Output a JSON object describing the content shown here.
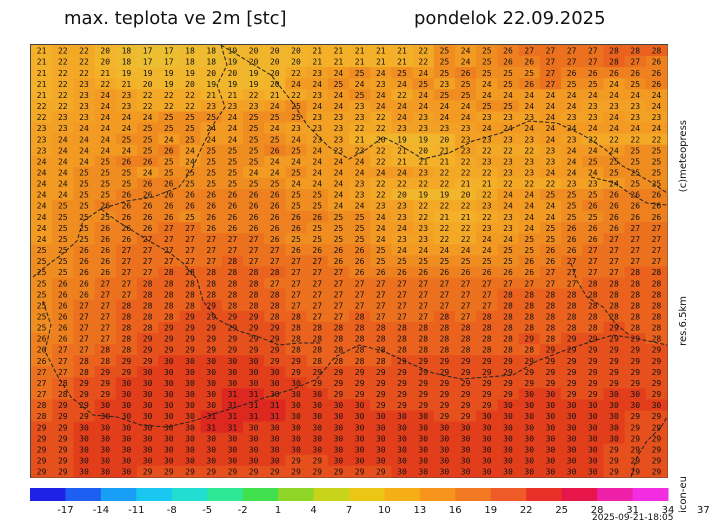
{
  "header": {
    "title": "max. teplota ve 2m [stc]",
    "date": "pondelok 22.09.2025"
  },
  "side_labels": {
    "copyright": "(c)meteopress",
    "resolution": "res.6.5km",
    "model": "icon-eu"
  },
  "timestamp": "2025-09-21-18:05",
  "legend": {
    "ticks": [
      "-17",
      "-14",
      "-11",
      "-8",
      "-5",
      "-2",
      "1",
      "4",
      "7",
      "10",
      "13",
      "16",
      "19",
      "22",
      "25",
      "28",
      "31",
      "34",
      "37"
    ],
    "colors": [
      "#1e22e6",
      "#1d5ff0",
      "#189ff5",
      "#19c7f0",
      "#22ded2",
      "#2ee896",
      "#40e04e",
      "#8fd628",
      "#c8d41a",
      "#ecc614",
      "#f6ae16",
      "#f6941c",
      "#f27822",
      "#ee5a28",
      "#e83028",
      "#e6164a",
      "#ee20a8",
      "#f22ce0"
    ]
  },
  "grid": {
    "columns": 30,
    "rows": [
      "21 22 22 20 18 17 17 18 18 19 20 20 20 21 21 21 21 21 22 25 24 25 26 27 27 27 27 28 28 28",
      "21 22 22 20 18 17 17 18 18 19 20 20 20 21 21 21 21 21 22 25 24 25 26 26 27 27 27 28 27 26",
      "21 22 22 21 19 19 19 19 20 20 19 20 22 23 24 25 24 25 24 25 26 25 25 25 27 26 26 26 26 26",
      "21 22 23 22 21 20 19 20 19 19 19 20 24 24 25 24 23 24 25 23 25 24 25 26 27 25 25 24 25 26",
      "21 22 23 24 23 22 22 22 21 21 22 21 22 23 24 25 24 22 24 25 25 24 24 24 24 24 24 24 24 24",
      "22 22 23 24 23 22 22 22 23 23 23 24 25 24 24 23 24 24 24 24 24 25 25 24 24 24 23 23 23 24",
      "22 23 23 24 24 24 25 25 25 24 25 25 25 23 23 23 22 24 23 24 24 23 23 23 24 23 23 24 23 23",
      "23 23 24 24 24 25 25 25 24 24 25 24 23 23 23 22 22 23 23 23 23 24 24 24 24 24 24 24 24 24",
      "23 24 24 24 25 25 24 25 24 24 25 25 24 23 23 21 20 19 19 20 23 23 23 23 24 23 22 22 22 22",
      "23 24 24 24 24 25 26 24 25 25 25 26 25 24 23 23 22 21 20 21 23 22 22 22 23 24 24 24 25 25",
      "24 24 24 25 26 26 25 24 25 25 25 24 24 24 24 24 22 21 21 21 22 23 23 23 23 24 25 25 25 25",
      "24 24 25 25 25 24 25 25 25 25 24 24 25 24 24 24 24 24 23 22 22 22 23 23 24 24 24 25 25 25",
      "24 24 25 25 25 26 26 25 25 25 25 25 24 24 24 23 22 22 22 22 21 21 22 22 22 23 23 24 25 25",
      "24 24 25 25 26 26 26 26 26 26 26 26 25 25 24 23 22 20 19 19 20 22 24 24 25 25 25 26 26 26",
      "24 25 25 26 26 26 26 26 26 26 26 26 25 25 24 24 23 23 22 22 22 23 24 24 24 25 26 26 26 26",
      "24 25 25 25 26 26 26 25 26 26 26 26 26 26 25 25 24 23 22 21 21 22 23 24 24 25 25 26 26 26",
      "24 25 25 26 26 26 27 27 26 26 26 26 26 25 25 25 24 24 23 22 22 23 23 24 25 26 26 26 27 27",
      "24 25 25 26 26 27 27 27 27 27 27 26 25 25 25 25 24 23 23 22 22 24 24 25 25 26 26 27 27 27",
      "25 25 26 26 27 27 27 27 27 27 27 27 26 26 26 26 25 24 24 24 24 24 25 25 26 26 27 27 27 27",
      "25 25 26 26 27 27 27 27 27 28 27 27 27 27 26 26 25 25 25 25 25 25 25 26 26 27 27 27 27 27",
      "25 25 26 26 27 27 28 28 28 28 28 28 27 27 27 26 26 26 26 26 26 26 26 26 27 27 27 27 28 28",
      "25 26 26 27 27 28 28 28 28 28 28 27 27 27 27 27 27 27 27 27 27 27 27 27 27 27 28 28 28 28",
      "25 26 26 27 27 28 28 28 28 28 28 28 27 27 27 27 27 27 27 27 27 27 28 28 28 28 28 28 28 28",
      "25 26 27 27 28 28 28 28 29 28 28 28 27 27 27 27 27 27 27 27 27 27 28 28 28 28 28 28 28 28",
      "25 26 27 27 28 28 28 29 29 29 29 28 28 27 27 28 27 27 27 28 27 28 28 28 28 28 28 28 28 28",
      "25 26 27 27 28 28 29 29 29 29 29 29 28 28 28 28 28 28 28 28 28 28 28 28 28 28 28 29 28 28",
      "26 26 27 27 28 29 29 29 29 29 29 29 28 28 28 28 28 28 28 28 28 28 28 29 28 29 29 29 29 28",
      "26 27 27 28 28 29 29 29 29 29 29 29 28 28 28 28 28 28 28 28 28 28 28 28 29 29 29 29 29 29",
      "26 27 28 28 29 29 30 30 30 30 30 29 29 28 28 28 28 29 29 29 29 29 29 29 29 29 29 29 29 29",
      "27 27 28 29 29 30 30 30 30 30 30 30 29 29 29 29 29 29 29 29 29 29 29 29 29 29 29 29 29 29",
      "27 28 29 29 30 30 30 30 30 30 30 30 30 29 29 29 29 29 29 29 29 29 29 29 29 29 29 29 29 29",
      "27 28 29 29 30 30 30 30 30 31 31 30 30 30 29 29 29 29 29 29 29 29 29 30 30 29 29 30 30 29",
      "28 29 29 30 30 30 30 30 30 31 31 31 30 30 30 30 29 29 29 29 29 29 30 30 30 30 30 30 30 30",
      "28 29 29 30 30 30 30 30 31 31 31 31 30 30 30 30 30 30 30 29 29 30 30 30 30 30 30 30 29 29",
      "29 29 30 30 30 30 30 30 31 31 30 30 30 30 30 30 30 30 30 30 30 30 30 30 30 30 30 30 29 29",
      "29 29 30 30 30 30 30 30 30 30 30 30 30 30 30 30 30 30 30 30 30 30 30 30 30 30 30 30 29 29",
      "29 29 30 30 30 30 30 30 30 30 30 30 30 30 30 30 30 30 30 30 30 30 30 30 30 30 30 29 29 29",
      "29 29 30 30 30 30 30 30 30 30 30 30 29 29 30 30 30 30 30 30 30 30 30 30 30 30 30 29 29 29",
      "29 29 30 30 30 29 29 29 29 29 29 29 29 29 29 29 29 30 30 30 30 30 30 30 30 30 30 29 29 29"
    ]
  }
}
